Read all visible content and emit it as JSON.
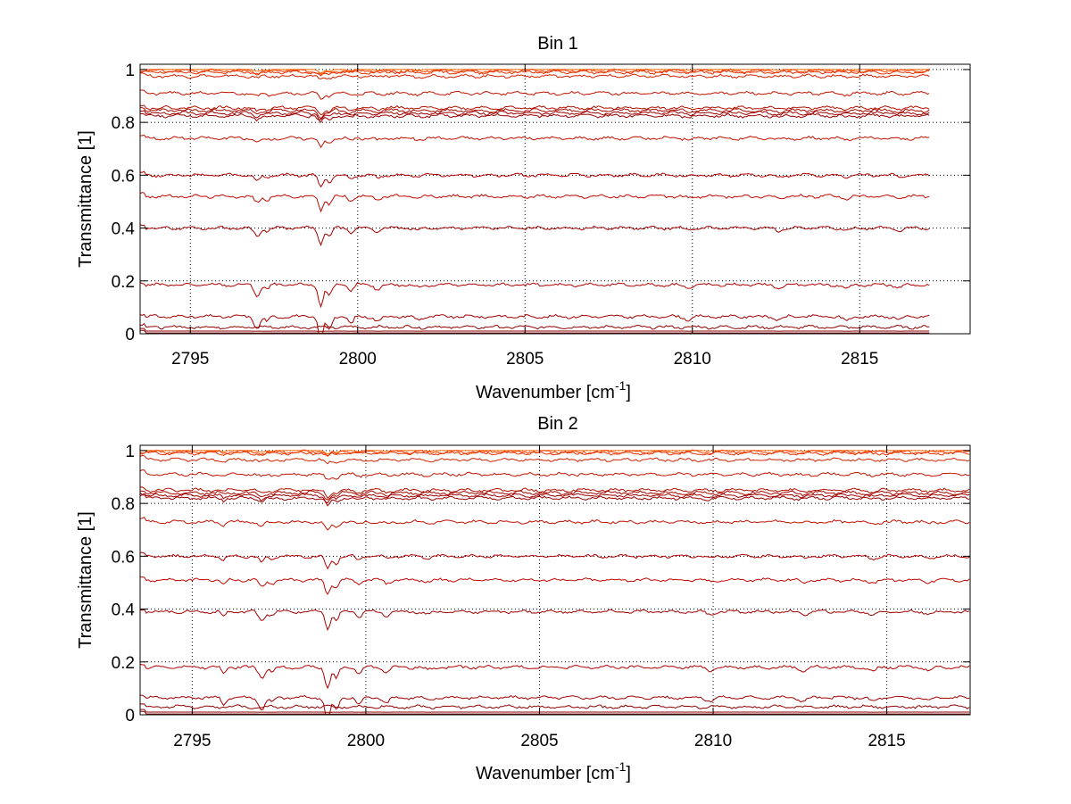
{
  "chart_data": [
    {
      "type": "line",
      "title": "Bin 1",
      "xlabel": "Wavenumber [cm",
      "xlabel_sup": "-1",
      "xlabel_tail": "]",
      "ylabel": "Transmittance [1]",
      "xlim": [
        2793.5,
        2818.3
      ],
      "ylim": [
        0,
        1.02
      ],
      "xticks": [
        2795,
        2800,
        2805,
        2810,
        2815
      ],
      "xtick_labels": [
        "2795",
        "2800",
        "2805",
        "2810",
        "2815"
      ],
      "yticks": [
        0,
        0.2,
        0.4,
        0.6,
        0.8,
        1
      ],
      "ytick_labels": [
        "0",
        "0.2",
        "0.4",
        "0.6",
        "0.8",
        "1"
      ],
      "grid": true,
      "data_x_end": 2817.1,
      "series": [
        {
          "baseline": 1.0,
          "color": "#ff6a00"
        },
        {
          "baseline": 0.995,
          "color": "#ff4000"
        },
        {
          "baseline": 0.99,
          "color": "#e23000"
        },
        {
          "baseline": 0.975,
          "color": "#d02000"
        },
        {
          "baseline": 0.91,
          "color": "#c01500"
        },
        {
          "baseline": 0.855,
          "color": "#b01000"
        },
        {
          "baseline": 0.845,
          "color": "#a80800"
        },
        {
          "baseline": 0.835,
          "color": "#a00000"
        },
        {
          "baseline": 0.825,
          "color": "#980000"
        },
        {
          "baseline": 0.74,
          "color": "#c01000"
        },
        {
          "baseline": 0.6,
          "color": "#b00000"
        },
        {
          "baseline": 0.52,
          "color": "#c00800"
        },
        {
          "baseline": 0.4,
          "color": "#a00000"
        },
        {
          "baseline": 0.185,
          "color": "#b00000"
        },
        {
          "baseline": 0.065,
          "color": "#a00000"
        },
        {
          "baseline": 0.025,
          "color": "#900000"
        },
        {
          "baseline": 0.01,
          "color": "#880000"
        },
        {
          "baseline": 0.003,
          "color": "#800000"
        }
      ]
    },
    {
      "type": "line",
      "title": "Bin 2",
      "xlabel": "Wavenumber [cm",
      "xlabel_sup": "-1",
      "xlabel_tail": "]",
      "ylabel": "Transmittance [1]",
      "xlim": [
        2793.5,
        2817.4
      ],
      "ylim": [
        0,
        1.02
      ],
      "xticks": [
        2795,
        2800,
        2805,
        2810,
        2815
      ],
      "xtick_labels": [
        "2795",
        "2800",
        "2805",
        "2810",
        "2815"
      ],
      "yticks": [
        0,
        0.2,
        0.4,
        0.6,
        0.8,
        1
      ],
      "ytick_labels": [
        "0",
        "0.2",
        "0.4",
        "0.6",
        "0.8",
        "1"
      ],
      "grid": true,
      "data_x_end": 2817.4,
      "series": [
        {
          "baseline": 1.0,
          "color": "#ff6a00"
        },
        {
          "baseline": 0.995,
          "color": "#ff4000"
        },
        {
          "baseline": 0.99,
          "color": "#e23000"
        },
        {
          "baseline": 0.965,
          "color": "#d02000"
        },
        {
          "baseline": 0.91,
          "color": "#c01500"
        },
        {
          "baseline": 0.85,
          "color": "#b01000"
        },
        {
          "baseline": 0.84,
          "color": "#a80800"
        },
        {
          "baseline": 0.83,
          "color": "#a00000"
        },
        {
          "baseline": 0.82,
          "color": "#980000"
        },
        {
          "baseline": 0.73,
          "color": "#c01000"
        },
        {
          "baseline": 0.6,
          "color": "#b00000"
        },
        {
          "baseline": 0.51,
          "color": "#c00800"
        },
        {
          "baseline": 0.39,
          "color": "#a00000"
        },
        {
          "baseline": 0.18,
          "color": "#b00000"
        },
        {
          "baseline": 0.065,
          "color": "#a00000"
        },
        {
          "baseline": 0.03,
          "color": "#900000"
        },
        {
          "baseline": 0.01,
          "color": "#880000"
        },
        {
          "baseline": 0.003,
          "color": "#800000"
        }
      ]
    }
  ]
}
